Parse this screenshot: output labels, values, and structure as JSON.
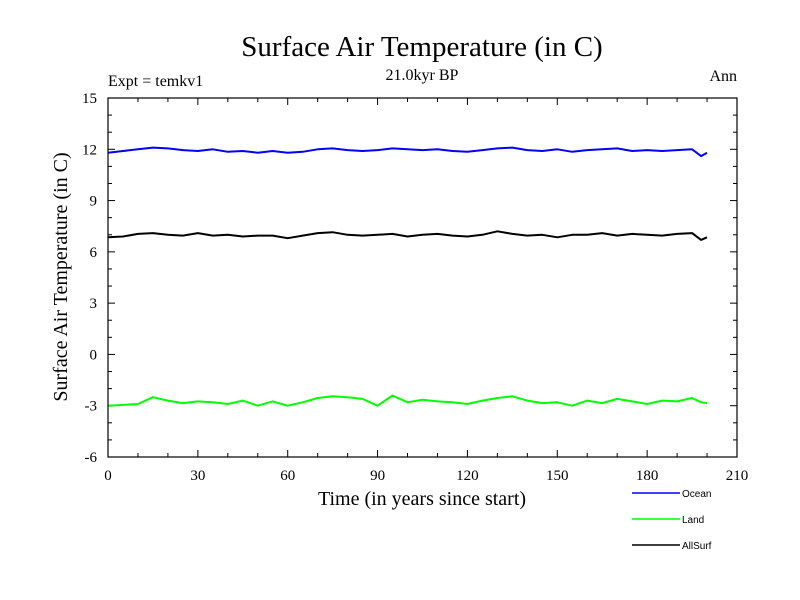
{
  "chart_data": {
    "type": "line",
    "title": "Surface Air Temperature (in C)",
    "subtitle": "21.0kyr BP",
    "left_label": "Expt = temkv1",
    "right_label": "Ann",
    "xlabel": "Time (in years since start)",
    "ylabel": "Surface Air Temperature (in C)",
    "xlim": [
      0,
      210
    ],
    "ylim": [
      -6,
      15
    ],
    "xticks": [
      0,
      30,
      60,
      90,
      120,
      150,
      180,
      210
    ],
    "yticks": [
      -6,
      -3,
      0,
      3,
      6,
      9,
      12,
      15
    ],
    "x_minor_step": 10,
    "y_minor_step": 1,
    "legend_position": "bottom-right, below plot",
    "series": [
      {
        "name": "Ocean",
        "color": "#0000ff",
        "x": [
          0,
          5,
          10,
          15,
          20,
          25,
          30,
          35,
          40,
          45,
          50,
          55,
          60,
          65,
          70,
          75,
          80,
          85,
          90,
          95,
          100,
          105,
          110,
          115,
          120,
          125,
          130,
          135,
          140,
          145,
          150,
          155,
          160,
          165,
          170,
          175,
          180,
          185,
          190,
          195,
          198,
          200
        ],
        "values": [
          11.8,
          11.9,
          12.0,
          12.1,
          12.05,
          11.95,
          11.9,
          12.0,
          11.85,
          11.9,
          11.8,
          11.9,
          11.8,
          11.85,
          12.0,
          12.05,
          11.95,
          11.9,
          11.95,
          12.05,
          12.0,
          11.95,
          12.0,
          11.9,
          11.85,
          11.95,
          12.05,
          12.1,
          11.95,
          11.9,
          12.0,
          11.85,
          11.95,
          12.0,
          12.05,
          11.9,
          11.95,
          11.9,
          11.95,
          12.0,
          11.6,
          11.8
        ]
      },
      {
        "name": "Land",
        "color": "#00ff00",
        "x": [
          0,
          5,
          10,
          15,
          20,
          25,
          30,
          35,
          40,
          45,
          50,
          55,
          60,
          65,
          70,
          75,
          80,
          85,
          90,
          95,
          100,
          105,
          110,
          115,
          120,
          125,
          130,
          135,
          140,
          145,
          150,
          155,
          160,
          165,
          170,
          175,
          180,
          185,
          190,
          195,
          198,
          200
        ],
        "values": [
          -3.0,
          -2.95,
          -2.9,
          -2.5,
          -2.7,
          -2.85,
          -2.75,
          -2.8,
          -2.9,
          -2.7,
          -3.0,
          -2.75,
          -3.0,
          -2.8,
          -2.55,
          -2.45,
          -2.5,
          -2.6,
          -3.0,
          -2.4,
          -2.8,
          -2.65,
          -2.75,
          -2.8,
          -2.9,
          -2.7,
          -2.55,
          -2.45,
          -2.7,
          -2.85,
          -2.8,
          -3.0,
          -2.7,
          -2.85,
          -2.6,
          -2.75,
          -2.9,
          -2.7,
          -2.75,
          -2.55,
          -2.8,
          -2.85
        ]
      },
      {
        "name": "AllSurf",
        "color": "#000000",
        "x": [
          0,
          5,
          10,
          15,
          20,
          25,
          30,
          35,
          40,
          45,
          50,
          55,
          60,
          65,
          70,
          75,
          80,
          85,
          90,
          95,
          100,
          105,
          110,
          115,
          120,
          125,
          130,
          135,
          140,
          145,
          150,
          155,
          160,
          165,
          170,
          175,
          180,
          185,
          190,
          195,
          198,
          200
        ],
        "values": [
          6.85,
          6.9,
          7.05,
          7.1,
          7.0,
          6.95,
          7.1,
          6.95,
          7.0,
          6.9,
          6.95,
          6.95,
          6.8,
          6.95,
          7.1,
          7.15,
          7.0,
          6.95,
          7.0,
          7.05,
          6.9,
          7.0,
          7.05,
          6.95,
          6.9,
          7.0,
          7.2,
          7.05,
          6.95,
          7.0,
          6.85,
          7.0,
          7.0,
          7.1,
          6.95,
          7.05,
          7.0,
          6.95,
          7.05,
          7.1,
          6.7,
          6.85
        ]
      }
    ]
  }
}
